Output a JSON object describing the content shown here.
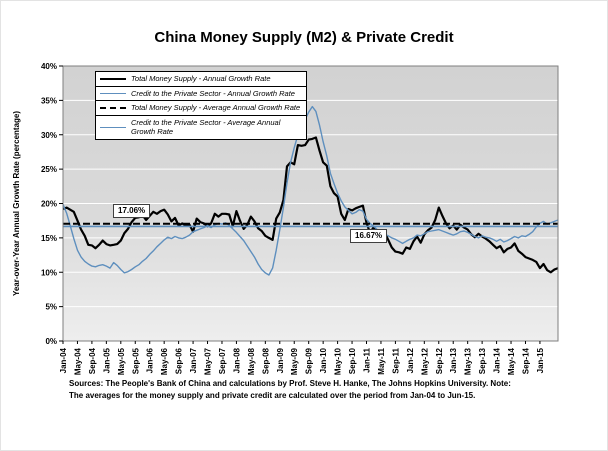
{
  "title": "China Money Supply (M2) & Private Credit",
  "y_axis_label": "Year-over-Year Annual Growth Rate (percentage)",
  "source": {
    "line1": "Sources: The People's Bank of China and calculations by Prof. Steve H. Hanke, The Johns Hopkins University. Note:",
    "line2": "The averages for the money supply and private credit are calculated over the period from Jan-04 to Jun-15."
  },
  "annotations": [
    {
      "label": "17.06%",
      "value": 17.06,
      "refers_to": "Total Money Supply - Average Annual Growth Rate"
    },
    {
      "label": "16.67%",
      "value": 16.67,
      "refers_to": "Credit to the Private Sector - Average Annual Growth Rate"
    }
  ],
  "colors": {
    "m2_line": "#000000",
    "credit_line": "#5e8fbe",
    "plot_bg_top": "#d2d2d2",
    "plot_bg_mid": "#dadada",
    "plot_bg_bottom": "#eeeeee",
    "gridline": "#ffffff",
    "plot_border": "#7f7f7f"
  },
  "chart_data": {
    "type": "line",
    "title": "China Money Supply (M2) & Private Credit",
    "xlabel": "",
    "ylabel": "Year-over-Year Annual Growth Rate (percentage)",
    "ylim": [
      0,
      40
    ],
    "grid": true,
    "legend_position": "top-left",
    "x_period": "monthly from Jan-04 to Jun-15",
    "x_tick_step": 4,
    "x_tick_labels": [
      "Jan-04",
      "May-04",
      "Sep-04",
      "Jan-05",
      "May-05",
      "Sep-05",
      "Jan-06",
      "May-06",
      "Sep-06",
      "Jan-07",
      "May-07",
      "Sep-07",
      "Jan-08",
      "May-08",
      "Sep-08",
      "Jan-09",
      "May-09",
      "Sep-09",
      "Jan-10",
      "May-10",
      "Sep-10",
      "Jan-11",
      "May-11",
      "Sep-11",
      "Jan-12",
      "May-12",
      "Sep-12",
      "Jan-13",
      "May-13",
      "Sep-13",
      "Jan-14",
      "May-14",
      "Sep-14",
      "Jan-15"
    ],
    "y_ticks": [
      "0%",
      "5%",
      "10%",
      "15%",
      "20%",
      "25%",
      "30%",
      "35%",
      "40%"
    ],
    "series": [
      {
        "name": "Total Money Supply - Annual Growth Rate",
        "color_key": "m2_line",
        "style": "solid",
        "width": 2.2,
        "values": [
          19.2,
          19.4,
          19.1,
          18.8,
          17.5,
          16.2,
          15.3,
          14.0,
          13.9,
          13.5,
          14.0,
          14.6,
          14.1,
          13.9,
          14.0,
          14.1,
          14.6,
          15.7,
          16.3,
          17.3,
          17.9,
          18.0,
          18.3,
          17.6,
          18.2,
          18.8,
          18.5,
          18.9,
          19.1,
          18.4,
          17.4,
          17.9,
          16.8,
          17.1,
          16.8,
          16.9,
          15.9,
          17.8,
          17.3,
          17.1,
          16.7,
          17.1,
          18.5,
          18.1,
          18.5,
          18.5,
          18.4,
          16.7,
          18.9,
          17.5,
          16.3,
          16.9,
          18.1,
          17.4,
          16.4,
          16.0,
          15.3,
          15.0,
          14.7,
          17.8,
          18.7,
          20.5,
          25.4,
          26.0,
          25.7,
          28.5,
          28.4,
          28.5,
          29.3,
          29.4,
          29.6,
          27.7,
          26.0,
          25.5,
          22.5,
          21.5,
          21.0,
          18.5,
          17.6,
          19.2,
          19.0,
          19.3,
          19.5,
          19.7,
          17.2,
          15.7,
          16.6,
          15.3,
          15.1,
          15.9,
          14.7,
          13.6,
          13.0,
          12.9,
          12.7,
          13.6,
          13.4,
          14.5,
          15.2,
          14.3,
          15.5,
          16.1,
          16.5,
          17.6,
          19.4,
          18.2,
          17.1,
          16.4,
          16.8,
          16.2,
          16.9,
          16.5,
          16.2,
          15.5,
          15.1,
          15.6,
          15.2,
          14.9,
          14.5,
          14.0,
          13.5,
          13.8,
          12.9,
          13.4,
          13.6,
          14.2,
          13.1,
          12.7,
          12.2,
          12.0,
          11.8,
          11.5,
          10.6,
          11.2,
          10.3,
          10.0,
          10.4,
          10.6
        ]
      },
      {
        "name": "Credit to the Private Sector - Annual Growth Rate",
        "color_key": "credit_line",
        "style": "solid",
        "width": 1.4,
        "values": [
          19.9,
          18.6,
          16.8,
          14.9,
          13.2,
          12.2,
          11.6,
          11.2,
          10.9,
          10.8,
          11.0,
          11.1,
          10.9,
          10.6,
          11.4,
          11.0,
          10.4,
          9.9,
          10.1,
          10.4,
          10.8,
          11.1,
          11.6,
          12.0,
          12.6,
          13.1,
          13.7,
          14.2,
          14.7,
          15.1,
          14.9,
          15.2,
          15.0,
          14.9,
          15.1,
          15.4,
          15.9,
          16.1,
          16.3,
          16.5,
          16.8,
          16.5,
          16.9,
          17.1,
          17.0,
          17.2,
          16.8,
          16.3,
          15.8,
          15.2,
          14.6,
          13.8,
          13.0,
          12.2,
          11.2,
          10.4,
          9.9,
          9.6,
          10.6,
          13.2,
          16.2,
          19.4,
          23.0,
          26.0,
          28.1,
          30.0,
          31.2,
          32.2,
          33.3,
          34.1,
          33.4,
          31.4,
          29.0,
          26.9,
          24.4,
          22.9,
          21.5,
          20.4,
          19.5,
          19.0,
          18.5,
          18.7,
          19.1,
          18.9,
          17.7,
          17.1,
          16.7,
          16.2,
          15.8,
          15.6,
          15.3,
          15.0,
          14.8,
          14.5,
          14.2,
          14.5,
          14.8,
          15.0,
          15.4,
          15.3,
          15.6,
          15.9,
          16.0,
          16.1,
          16.2,
          16.0,
          15.8,
          15.6,
          15.4,
          15.6,
          15.9,
          16.0,
          15.8,
          15.5,
          15.2,
          15.0,
          15.3,
          15.1,
          15.0,
          14.8,
          14.5,
          14.8,
          14.4,
          14.6,
          14.9,
          15.2,
          15.0,
          15.3,
          15.2,
          15.5,
          15.9,
          16.6,
          17.1,
          17.4,
          17.0,
          17.2,
          17.4,
          17.6
        ]
      },
      {
        "name": "Total Money Supply - Average Annual Growth Rate",
        "color_key": "m2_line",
        "style": "dashed",
        "width": 2,
        "avg_value": 17.06
      },
      {
        "name": "Credit to the Private Sector - Average Annual Growth Rate",
        "color_key": "credit_line",
        "style": "solid",
        "width": 1.6,
        "avg_value": 16.67
      }
    ]
  }
}
